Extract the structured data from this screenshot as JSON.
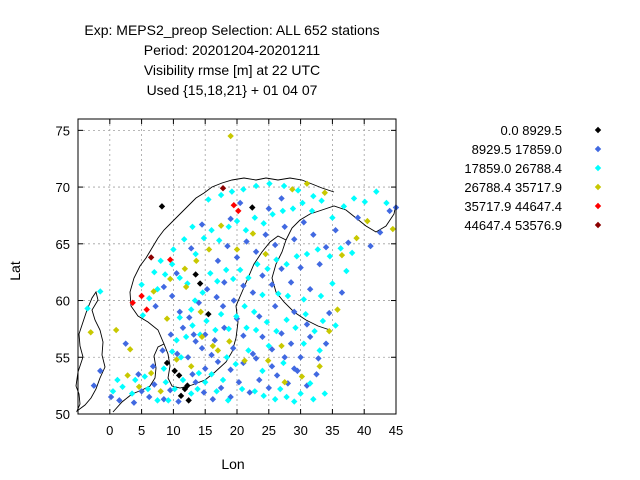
{
  "chart_data": {
    "type": "scatter",
    "title_lines": [
      "Exp: MEPS2_preop   Selection: ALL    652 stations",
      "Period: 20201204-20201211",
      "Visibility rmse [m] at  22 UTC",
      "Used {15,18,21} + 01 04 07"
    ],
    "xlabel": "Lon",
    "ylabel": "Lat",
    "xlim": [
      -5,
      45
    ],
    "ylim": [
      50,
      76
    ],
    "xticks": [
      0,
      5,
      10,
      15,
      20,
      25,
      30,
      35,
      40,
      45
    ],
    "yticks": [
      50,
      55,
      60,
      65,
      70,
      75
    ],
    "grid": true,
    "legend_position": "right",
    "legend": [
      {
        "label": "0.0 8929.5",
        "color": "#000000"
      },
      {
        "label": "8929.5 17859.0",
        "color": "#4169e1"
      },
      {
        "label": "17859.0 26788.4",
        "color": "#00ffff"
      },
      {
        "label": "26788.4 35717.9",
        "color": "#c8c800"
      },
      {
        "label": "35717.9 44647.4",
        "color": "#ff0000"
      },
      {
        "label": "44647.4 53576.9",
        "color": "#8b0000"
      }
    ],
    "series": [
      {
        "points": [
          [
            11.8,
            52.2
          ],
          [
            12.2,
            52.5
          ],
          [
            10.9,
            53.4
          ],
          [
            9.0,
            54.5
          ],
          [
            15.5,
            58.8
          ],
          [
            14.2,
            61.5
          ],
          [
            13.5,
            62.3
          ],
          [
            22.4,
            68.2
          ],
          [
            8.2,
            68.3
          ],
          [
            11.2,
            51.6
          ],
          [
            12.4,
            51.2
          ],
          [
            10.2,
            53.8
          ]
        ]
      },
      {
        "points": [
          [
            -2.5,
            52.5
          ],
          [
            -1.5,
            53.8
          ],
          [
            0.2,
            51.5
          ],
          [
            1.5,
            51.2
          ],
          [
            3.8,
            51.0
          ],
          [
            5.0,
            52.0
          ],
          [
            6.2,
            51.5
          ],
          [
            7.0,
            52.6
          ],
          [
            8.5,
            51.3
          ],
          [
            9.5,
            52.1
          ],
          [
            10.8,
            51.1
          ],
          [
            13.5,
            52.8
          ],
          [
            14.8,
            51.9
          ],
          [
            16.2,
            51.3
          ],
          [
            17.5,
            52.3
          ],
          [
            19.0,
            51.5
          ],
          [
            20.3,
            52.8
          ],
          [
            22.0,
            51.9
          ],
          [
            23.5,
            53.0
          ],
          [
            25.0,
            52.3
          ],
          [
            26.3,
            53.4
          ],
          [
            28.0,
            52.7
          ],
          [
            29.5,
            53.8
          ],
          [
            31.0,
            52.5
          ],
          [
            12.3,
            55.0
          ],
          [
            13.5,
            56.4
          ],
          [
            15.0,
            57.0
          ],
          [
            16.5,
            56.5
          ],
          [
            18.0,
            57.6
          ],
          [
            19.4,
            55.8
          ],
          [
            21.0,
            56.9
          ],
          [
            22.5,
            55.3
          ],
          [
            24.0,
            56.8
          ],
          [
            25.5,
            55.7
          ],
          [
            27.0,
            57.1
          ],
          [
            28.5,
            56.2
          ],
          [
            30.0,
            55.0
          ],
          [
            31.5,
            56.8
          ],
          [
            32.8,
            54.9
          ],
          [
            34.0,
            56.2
          ],
          [
            12.5,
            58.5
          ],
          [
            14.0,
            59.8
          ],
          [
            15.3,
            61.0
          ],
          [
            16.8,
            60.3
          ],
          [
            18.0,
            61.6
          ],
          [
            19.5,
            60.0
          ],
          [
            21.0,
            61.3
          ],
          [
            22.5,
            60.7
          ],
          [
            24.0,
            62.2
          ],
          [
            25.5,
            61.4
          ],
          [
            27.0,
            62.8
          ],
          [
            28.5,
            61.6
          ],
          [
            30.0,
            62.9
          ],
          [
            31.5,
            61.0
          ],
          [
            33.0,
            63.2
          ],
          [
            17.0,
            63.5
          ],
          [
            18.5,
            64.8
          ],
          [
            20.0,
            63.8
          ],
          [
            21.5,
            65.2
          ],
          [
            23.0,
            64.3
          ],
          [
            24.5,
            65.8
          ],
          [
            26.0,
            64.9
          ],
          [
            27.5,
            66.5
          ],
          [
            29.0,
            65.4
          ],
          [
            30.5,
            66.9
          ],
          [
            32.0,
            65.8
          ],
          [
            34.0,
            64.7
          ],
          [
            35.5,
            66.2
          ],
          [
            37.5,
            65.1
          ],
          [
            39.0,
            67.3
          ],
          [
            41.0,
            64.8
          ],
          [
            42.5,
            66.0
          ],
          [
            44.0,
            67.9
          ],
          [
            45.0,
            68.2
          ],
          [
            19.0,
            67.2
          ],
          [
            20.5,
            68.6
          ],
          [
            25.0,
            68.1
          ],
          [
            27.0,
            69.0
          ],
          [
            14.5,
            66.7
          ],
          [
            12.8,
            64.6
          ],
          [
            10.5,
            62.4
          ],
          [
            8.5,
            61.2
          ],
          [
            7.2,
            59.5
          ],
          [
            9.8,
            60.4
          ],
          [
            11.0,
            59.0
          ],
          [
            17.8,
            59.5
          ],
          [
            20.0,
            58.4
          ],
          [
            23.5,
            58.6
          ],
          [
            26.0,
            59.5
          ],
          [
            29.0,
            59.0
          ],
          [
            31.0,
            57.9
          ],
          [
            34.5,
            58.9
          ],
          [
            36.5,
            60.7
          ],
          [
            13.0,
            53.5
          ],
          [
            15.0,
            54.0
          ],
          [
            17.0,
            54.6
          ],
          [
            19.0,
            53.9
          ],
          [
            21.0,
            54.5
          ],
          [
            23.0,
            54.9
          ],
          [
            25.5,
            54.2
          ],
          [
            27.5,
            55.0
          ],
          [
            29.0,
            54.0
          ],
          [
            32.5,
            53.5
          ],
          [
            2.5,
            56.2
          ],
          [
            4.5,
            53.5
          ],
          [
            6.8,
            54.2
          ],
          [
            8.3,
            55.6
          ],
          [
            9.6,
            57.0
          ],
          [
            10.6,
            55.3
          ],
          [
            11.5,
            57.6
          ],
          [
            13.2,
            57.0
          ],
          [
            14.5,
            55.8
          ],
          [
            16.0,
            55.2
          ]
        ]
      },
      {
        "points": [
          [
            -3.5,
            59.3
          ],
          [
            -1.5,
            60.8
          ],
          [
            0.5,
            52.0
          ],
          [
            1.2,
            53.0
          ],
          [
            2.0,
            52.4
          ],
          [
            3.5,
            51.8
          ],
          [
            4.0,
            53.0
          ],
          [
            5.5,
            53.3
          ],
          [
            6.0,
            52.2
          ],
          [
            7.5,
            51.2
          ],
          [
            8.8,
            52.8
          ],
          [
            9.2,
            51.2
          ],
          [
            10.2,
            52.2
          ],
          [
            11.5,
            53.0
          ],
          [
            12.8,
            51.8
          ],
          [
            13.8,
            52.2
          ],
          [
            15.0,
            52.8
          ],
          [
            16.0,
            53.5
          ],
          [
            17.8,
            53.0
          ],
          [
            18.6,
            51.2
          ],
          [
            20.8,
            52.2
          ],
          [
            22.8,
            52.0
          ],
          [
            24.2,
            51.6
          ],
          [
            26.8,
            52.2
          ],
          [
            27.8,
            51.5
          ],
          [
            30.0,
            51.8
          ],
          [
            32.0,
            51.3
          ],
          [
            8.5,
            54.0
          ],
          [
            9.8,
            55.5
          ],
          [
            10.5,
            56.5
          ],
          [
            11.2,
            55.0
          ],
          [
            12.0,
            56.8
          ],
          [
            13.0,
            57.8
          ],
          [
            14.2,
            57.0
          ],
          [
            15.2,
            58.2
          ],
          [
            16.6,
            57.4
          ],
          [
            17.5,
            58.8
          ],
          [
            18.7,
            57.5
          ],
          [
            19.9,
            58.6
          ],
          [
            21.5,
            57.6
          ],
          [
            23.0,
            57.4
          ],
          [
            24.7,
            58.1
          ],
          [
            26.2,
            57.3
          ],
          [
            27.8,
            58.3
          ],
          [
            29.2,
            57.6
          ],
          [
            30.8,
            58.8
          ],
          [
            32.2,
            57.3
          ],
          [
            33.5,
            58.2
          ],
          [
            35.5,
            57.8
          ],
          [
            5.2,
            58.7
          ],
          [
            6.2,
            60.2
          ],
          [
            7.5,
            61.0
          ],
          [
            8.7,
            62.3
          ],
          [
            9.8,
            63.2
          ],
          [
            11.0,
            62.0
          ],
          [
            12.2,
            61.5
          ],
          [
            13.4,
            60.0
          ],
          [
            14.6,
            60.7
          ],
          [
            15.8,
            62.4
          ],
          [
            16.9,
            61.7
          ],
          [
            18.3,
            62.7
          ],
          [
            19.4,
            61.9
          ],
          [
            20.5,
            62.7
          ],
          [
            21.8,
            62.0
          ],
          [
            23.2,
            63.2
          ],
          [
            24.8,
            62.8
          ],
          [
            26.2,
            63.6
          ],
          [
            27.8,
            63.2
          ],
          [
            29.4,
            63.9
          ],
          [
            31.0,
            64.1
          ],
          [
            32.7,
            64.5
          ],
          [
            34.6,
            63.9
          ],
          [
            36.3,
            64.6
          ],
          [
            38.1,
            64.2
          ],
          [
            13.5,
            64.1
          ],
          [
            14.8,
            65.5
          ],
          [
            16.0,
            66.2
          ],
          [
            17.2,
            65.3
          ],
          [
            18.7,
            66.5
          ],
          [
            20.0,
            67.0
          ],
          [
            21.4,
            66.2
          ],
          [
            22.8,
            67.3
          ],
          [
            24.2,
            66.8
          ],
          [
            25.6,
            67.6
          ],
          [
            27.2,
            67.9
          ],
          [
            28.8,
            68.1
          ],
          [
            30.3,
            68.6
          ],
          [
            31.8,
            67.9
          ],
          [
            33.3,
            68.8
          ],
          [
            35.0,
            67.3
          ],
          [
            36.8,
            68.3
          ],
          [
            38.4,
            69.0
          ],
          [
            40.1,
            68.7
          ],
          [
            41.9,
            69.6
          ],
          [
            43.5,
            68.6
          ],
          [
            15.5,
            68.9
          ],
          [
            17.5,
            69.3
          ],
          [
            19.2,
            69.6
          ],
          [
            21.0,
            69.8
          ],
          [
            23.0,
            70.1
          ],
          [
            25.1,
            70.3
          ],
          [
            27.4,
            70.1
          ],
          [
            29.6,
            69.7
          ],
          [
            32.0,
            69.2
          ],
          [
            5.0,
            61.4
          ],
          [
            7.0,
            62.5
          ],
          [
            8.0,
            63.5
          ],
          [
            10.0,
            64.5
          ],
          [
            11.7,
            65.4
          ],
          [
            13.0,
            66.5
          ],
          [
            24.0,
            60.5
          ],
          [
            26.5,
            60.6
          ],
          [
            28.0,
            60.4
          ],
          [
            30.5,
            60.1
          ],
          [
            33.2,
            60.4
          ],
          [
            35.0,
            61.5
          ],
          [
            37.2,
            62.6
          ],
          [
            21.2,
            59.5
          ],
          [
            22.7,
            59.0
          ],
          [
            25.0,
            56.0
          ],
          [
            27.3,
            54.5
          ],
          [
            30.5,
            56.2
          ],
          [
            33.0,
            55.6
          ],
          [
            11.0,
            58.5
          ],
          [
            12.8,
            59.2
          ],
          [
            14.0,
            53.6
          ],
          [
            16.8,
            52.0
          ],
          [
            18.4,
            55.0
          ],
          [
            19.8,
            54.4
          ],
          [
            21.8,
            55.6
          ],
          [
            24.0,
            53.8
          ],
          [
            26.0,
            51.3
          ],
          [
            29.0,
            51.1
          ],
          [
            31.5,
            52.7
          ],
          [
            33.8,
            51.8
          ]
        ]
      },
      {
        "points": [
          [
            -3.0,
            57.2
          ],
          [
            2.8,
            53.4
          ],
          [
            4.6,
            52.4
          ],
          [
            6.5,
            53.6
          ],
          [
            8.0,
            52.0
          ],
          [
            10.5,
            54.8
          ],
          [
            12.8,
            54.2
          ],
          [
            14.5,
            56.8
          ],
          [
            16.2,
            56.0
          ],
          [
            17.0,
            55.6
          ],
          [
            18.8,
            56.4
          ],
          [
            21.2,
            54.7
          ],
          [
            24.9,
            54.7
          ],
          [
            27.5,
            52.8
          ],
          [
            30.2,
            53.3
          ],
          [
            33.0,
            54.2
          ],
          [
            34.5,
            57.3
          ],
          [
            35.8,
            59.2
          ],
          [
            6.9,
            60.8
          ],
          [
            9.5,
            61.9
          ],
          [
            11.8,
            62.8
          ],
          [
            13.6,
            63.5
          ],
          [
            15.6,
            64.5
          ],
          [
            17.5,
            66.6
          ],
          [
            19.0,
            74.5
          ],
          [
            20.0,
            64.5
          ],
          [
            22.5,
            65.9
          ],
          [
            24.5,
            64.1
          ],
          [
            28.7,
            69.8
          ],
          [
            31.0,
            70.3
          ],
          [
            33.8,
            69.5
          ],
          [
            36.5,
            64.0
          ],
          [
            38.8,
            65.5
          ],
          [
            40.5,
            67.0
          ],
          [
            44.5,
            66.3
          ],
          [
            12.0,
            61.2
          ],
          [
            14.3,
            59.0
          ],
          [
            9.0,
            58.4
          ],
          [
            3.2,
            55.7
          ],
          [
            1.0,
            57.4
          ],
          [
            27.0,
            56.0
          ]
        ]
      },
      {
        "points": [
          [
            5.0,
            60.4
          ],
          [
            9.5,
            63.6
          ],
          [
            19.5,
            68.4
          ],
          [
            20.2,
            67.9
          ],
          [
            5.8,
            59.2
          ],
          [
            3.6,
            59.8
          ]
        ]
      },
      {
        "points": [
          [
            17.8,
            69.9
          ],
          [
            6.5,
            63.8
          ]
        ]
      }
    ]
  }
}
